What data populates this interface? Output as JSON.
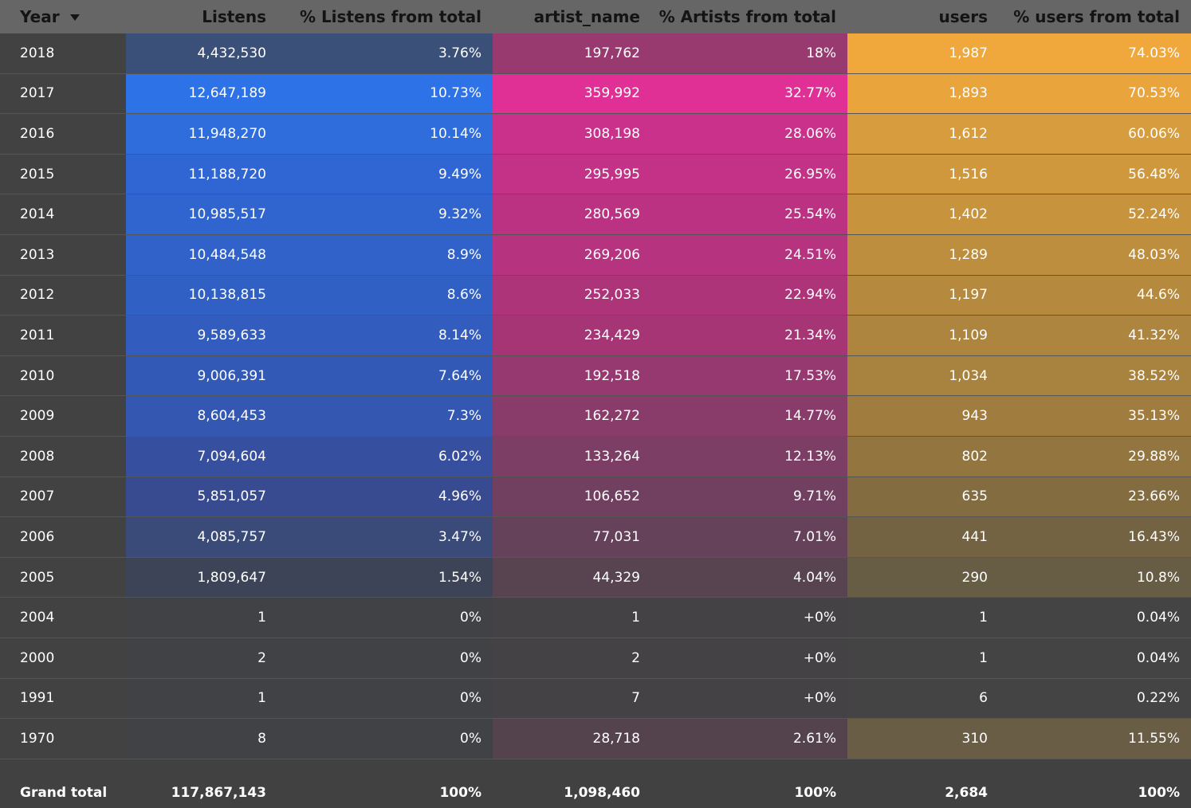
{
  "table": {
    "columns": [
      {
        "label": "Year",
        "sortable": true,
        "sort": "desc"
      },
      {
        "label": "Listens"
      },
      {
        "label": "% Listens from total"
      },
      {
        "label": "artist_name"
      },
      {
        "label": "% Artists from total"
      },
      {
        "label": "users"
      },
      {
        "label": "% users from total"
      }
    ],
    "rows": [
      {
        "year": "2018",
        "listens": "4,432,530",
        "pct_listens": "3.76%",
        "artists": "197,762",
        "pct_artists": "18%",
        "users": "1,987",
        "pct_users": "74.03%",
        "c_listens": "#3a5078",
        "c_artists": "#983a70",
        "c_users": "#f0a83c"
      },
      {
        "year": "2017",
        "listens": "12,647,189",
        "pct_listens": "10.73%",
        "artists": "359,992",
        "pct_artists": "32.77%",
        "users": "1,893",
        "pct_users": "70.53%",
        "c_listens": "#2e72e8",
        "c_artists": "#e03096",
        "c_users": "#e9a43c"
      },
      {
        "year": "2016",
        "listens": "11,948,270",
        "pct_listens": "10.14%",
        "artists": "308,198",
        "pct_artists": "28.06%",
        "users": "1,612",
        "pct_users": "60.06%",
        "c_listens": "#2f6cdc",
        "c_artists": "#c9318a",
        "c_users": "#d79c3d"
      },
      {
        "year": "2015",
        "listens": "11,188,720",
        "pct_listens": "9.49%",
        "artists": "295,995",
        "pct_artists": "26.95%",
        "users": "1,516",
        "pct_users": "56.48%",
        "c_listens": "#3066d3",
        "c_artists": "#c33286",
        "c_users": "#d0983d"
      },
      {
        "year": "2014",
        "listens": "10,985,517",
        "pct_listens": "9.32%",
        "artists": "280,569",
        "pct_artists": "25.54%",
        "users": "1,402",
        "pct_users": "52.24%",
        "c_listens": "#3065d0",
        "c_artists": "#bc3283",
        "c_users": "#c7933d"
      },
      {
        "year": "2013",
        "listens": "10,484,548",
        "pct_listens": "8.9%",
        "artists": "269,206",
        "pct_artists": "24.51%",
        "users": "1,289",
        "pct_users": "48.03%",
        "c_listens": "#3162ca",
        "c_artists": "#b6337f",
        "c_users": "#bd8e3e"
      },
      {
        "year": "2012",
        "listens": "10,138,815",
        "pct_listens": "8.6%",
        "artists": "252,033",
        "pct_artists": "22.94%",
        "users": "1,197",
        "pct_users": "44.6%",
        "c_listens": "#3160c5",
        "c_artists": "#ae347a",
        "c_users": "#b68a3e"
      },
      {
        "year": "2011",
        "listens": "9,589,633",
        "pct_listens": "8.14%",
        "artists": "234,429",
        "pct_artists": "21.34%",
        "users": "1,109",
        "pct_users": "41.32%",
        "c_listens": "#325cbe",
        "c_artists": "#a63576",
        "c_users": "#ae853e"
      },
      {
        "year": "2010",
        "listens": "9,006,391",
        "pct_listens": "7.64%",
        "artists": "192,518",
        "pct_artists": "17.53%",
        "users": "1,034",
        "pct_users": "38.52%",
        "c_listens": "#3359b7",
        "c_artists": "#963970",
        "c_users": "#a8823f"
      },
      {
        "year": "2009",
        "listens": "8,604,453",
        "pct_listens": "7.3%",
        "artists": "162,272",
        "pct_artists": "14.77%",
        "users": "943",
        "pct_users": "35.13%",
        "c_listens": "#3457b2",
        "c_artists": "#893b6a",
        "c_users": "#a07d3f"
      },
      {
        "year": "2008",
        "listens": "7,094,604",
        "pct_listens": "6.02%",
        "artists": "133,264",
        "pct_artists": "12.13%",
        "users": "802",
        "pct_users": "29.88%",
        "c_listens": "#364f9f",
        "c_artists": "#7d3e65",
        "c_users": "#937540"
      },
      {
        "year": "2007",
        "listens": "5,851,057",
        "pct_listens": "4.96%",
        "artists": "106,652",
        "pct_artists": "9.71%",
        "users": "635",
        "pct_users": "23.66%",
        "c_listens": "#384a90",
        "c_artists": "#713f5f",
        "c_users": "#846c41"
      },
      {
        "year": "2006",
        "listens": "4,085,757",
        "pct_listens": "3.47%",
        "artists": "77,031",
        "pct_artists": "7.01%",
        "users": "441",
        "pct_users": "16.43%",
        "c_listens": "#3a4a79",
        "c_artists": "#654259",
        "c_users": "#736342"
      },
      {
        "year": "2005",
        "listens": "1,809,647",
        "pct_listens": "1.54%",
        "artists": "44,329",
        "pct_artists": "4.04%",
        "users": "290",
        "pct_users": "10.8%",
        "c_listens": "#3d4458",
        "c_artists": "#574450",
        "c_users": "#675d44"
      },
      {
        "year": "2004",
        "listens": "1",
        "pct_listens": "0%",
        "artists": "1",
        "pct_artists": "+0%",
        "users": "1",
        "pct_users": "0.04%",
        "c_listens": "#404246",
        "c_artists": "#444244",
        "c_users": "#444444"
      },
      {
        "year": "2000",
        "listens": "2",
        "pct_listens": "0%",
        "artists": "2",
        "pct_artists": "+0%",
        "users": "1",
        "pct_users": "0.04%",
        "c_listens": "#404246",
        "c_artists": "#444244",
        "c_users": "#444444"
      },
      {
        "year": "1991",
        "listens": "1",
        "pct_listens": "0%",
        "artists": "7",
        "pct_artists": "+0%",
        "users": "6",
        "pct_users": "0.22%",
        "c_listens": "#404246",
        "c_artists": "#444244",
        "c_users": "#444444"
      },
      {
        "year": "1970",
        "listens": "8",
        "pct_listens": "0%",
        "artists": "28,718",
        "pct_artists": "2.61%",
        "users": "310",
        "pct_users": "11.55%",
        "c_listens": "#404246",
        "c_artists": "#54434d",
        "c_users": "#695d45"
      }
    ],
    "total": {
      "label": "Grand total",
      "listens": "117,867,143",
      "pct_listens": "100%",
      "artists": "1,098,460",
      "pct_artists": "100%",
      "users": "2,684",
      "pct_users": "100%"
    }
  },
  "colors": {
    "header_bg": "#666666",
    "header_text": "#141414",
    "body_bg": "#414141",
    "text": "#ffffff"
  }
}
